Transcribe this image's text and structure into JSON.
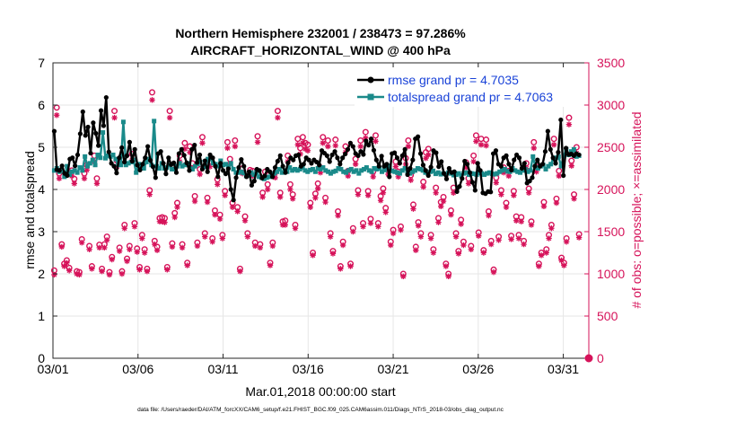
{
  "chart_data": {
    "type": "line",
    "title_line1": "Northern Hemisphere 232001 / 238473 = 97.286%",
    "title_line2": "AIRCRAFT_HORIZONTAL_WIND @ 400 hPa",
    "xlabel": "Mar.01,2018 00:00:00 start",
    "ylabel_left": "rmse and totalspread",
    "ylabel_right": "# of obs: o=possible; ×=assimilated",
    "footnote": "data file: /Users/raeder/DAI/ATM_forcXX/CAM6_setup/f.e21.FHIST_BGC.f09_025.CAM6assim.011/Diags_NTrS_2018-03/obs_diag_output.nc",
    "xlim": [
      0,
      31.5
    ],
    "ylim_left": [
      0,
      7
    ],
    "ylim_right": [
      0,
      3500
    ],
    "x_ticks": [
      {
        "value": 0,
        "label": "03/01"
      },
      {
        "value": 5,
        "label": "03/06"
      },
      {
        "value": 10,
        "label": "03/11"
      },
      {
        "value": 15,
        "label": "03/16"
      },
      {
        "value": 20,
        "label": "03/21"
      },
      {
        "value": 25,
        "label": "03/26"
      },
      {
        "value": 30,
        "label": "03/31"
      }
    ],
    "y_left_ticks": [
      "0",
      "1",
      "2",
      "3",
      "4",
      "5",
      "6",
      "7"
    ],
    "y_right_ticks": [
      "0",
      "500",
      "1000",
      "1500",
      "2000",
      "2500",
      "3000",
      "3500"
    ],
    "colors": {
      "rmse": "#000000",
      "spread": "#1a8a8a",
      "obs": "#d6135a",
      "legend_text": "#1a43d8",
      "right_axis": "#d6135a"
    },
    "series": [
      {
        "name": "rmse grand pr = 4.7035",
        "key": "rmse",
        "values": [
          5.38,
          4.47,
          4.45,
          4.56,
          4.38,
          4.33,
          4.72,
          4.75,
          4.56,
          4.82,
          5.32,
          5.84,
          5.28,
          5.48,
          4.86,
          5.58,
          5.33,
          5.04,
          5.87,
          5.51,
          6.18,
          4.89,
          4.62,
          4.55,
          4.39,
          4.75,
          4.99,
          4.65,
          4.8,
          5.12,
          4.67,
          4.95,
          4.58,
          4.46,
          4.6,
          4.75,
          5.02,
          4.69,
          4.54,
          4.28,
          4.85,
          4.9,
          4.62,
          4.37,
          4.75,
          4.59,
          4.63,
          4.4,
          4.85,
          4.95,
          4.81,
          4.63,
          4.45,
          4.95,
          5.05,
          4.64,
          4.82,
          4.48,
          4.68,
          4.42,
          4.82,
          4.75,
          4.55,
          4.3,
          4.62,
          4.45,
          4.37,
          4.49,
          4.0,
          3.75,
          4.28,
          4.52,
          4.71,
          4.55,
          4.3,
          4.42,
          4.1,
          4.2,
          4.48,
          4.45,
          4.27,
          4.32,
          4.48,
          4.42,
          4.3,
          4.52,
          4.67,
          4.8,
          4.55,
          4.4,
          4.63,
          4.75,
          4.7,
          4.8,
          4.82,
          4.55,
          4.6,
          4.75,
          4.7,
          4.62,
          4.7,
          4.65,
          4.58,
          4.92,
          4.86,
          4.8,
          4.66,
          4.82,
          4.9,
          4.75,
          4.6,
          4.75,
          4.84,
          4.95,
          5.1,
          5.02,
          4.85,
          4.8,
          4.9,
          4.83,
          5.15,
          5.05,
          5.2,
          4.93,
          4.7,
          4.55,
          4.79,
          4.55,
          4.6,
          4.3,
          4.85,
          4.87,
          4.75,
          4.62,
          4.8,
          4.95,
          4.35,
          4.5,
          4.7,
          5.2,
          5.25,
          4.85,
          4.58,
          4.45,
          4.33,
          4.53,
          4.92,
          4.87,
          4.54,
          4.66,
          4.38,
          4.25,
          4.5,
          4.4,
          4.42,
          3.95,
          4.07,
          4.26,
          4.67,
          4.6,
          4.4,
          4.17,
          3.98,
          4.62,
          4.45,
          3.92,
          3.9,
          3.95,
          3.94,
          4.85,
          4.92,
          4.6,
          4.55,
          4.75,
          4.8,
          4.6,
          4.46,
          4.7,
          4.82,
          4.75,
          4.5,
          4.62,
          4.15,
          4.2,
          4.28,
          4.55,
          4.7,
          4.55,
          4.6,
          4.9,
          5.38,
          4.95,
          4.75,
          4.62,
          4.88,
          5.65,
          4.33,
          4.98,
          4.83,
          4.84,
          4.8,
          4.85,
          4.82
        ]
      },
      {
        "name": "totalspread grand pr = 4.7063",
        "key": "spread",
        "values": [
          4.45,
          4.5,
          4.42,
          4.46,
          4.3,
          4.55,
          4.35,
          4.42,
          4.45,
          4.4,
          4.52,
          4.45,
          4.78,
          4.55,
          4.62,
          4.7,
          4.58,
          4.82,
          4.75,
          5.35,
          4.74,
          4.8,
          4.78,
          4.82,
          4.72,
          4.6,
          4.58,
          5.6,
          4.58,
          4.62,
          4.65,
          4.7,
          4.4,
          4.6,
          4.58,
          4.5,
          4.65,
          4.72,
          4.58,
          5.62,
          4.55,
          4.5,
          4.62,
          4.5,
          4.52,
          4.58,
          4.48,
          4.48,
          4.55,
          4.62,
          4.55,
          4.58,
          4.62,
          4.5,
          4.48,
          4.55,
          4.6,
          4.65,
          4.52,
          4.54,
          4.72,
          4.75,
          4.62,
          4.6,
          4.55,
          4.68,
          4.58,
          4.6,
          4.55,
          4.62,
          4.48,
          4.4,
          4.4,
          4.42,
          4.39,
          4.32,
          4.33,
          4.4,
          4.35,
          4.42,
          4.3,
          4.28,
          4.25,
          4.28,
          4.3,
          4.35,
          4.38,
          4.42,
          4.48,
          4.4,
          4.45,
          4.42,
          4.52,
          4.45,
          4.48,
          4.45,
          4.48,
          4.52,
          4.45,
          4.42,
          4.46,
          4.48,
          4.42,
          4.5,
          4.48,
          4.52,
          4.45,
          4.42,
          4.38,
          4.42,
          4.44,
          4.5,
          4.48,
          4.42,
          4.4,
          4.45,
          4.48,
          4.42,
          4.45,
          4.38,
          4.45,
          4.48,
          4.52,
          4.45,
          4.42,
          4.5,
          4.48,
          4.5,
          4.42,
          4.46,
          4.52,
          4.56,
          4.44,
          4.42,
          4.4,
          4.38,
          4.45,
          4.5,
          4.4,
          4.38,
          4.42,
          4.45,
          4.5,
          4.48,
          4.45,
          4.4,
          4.38,
          4.42,
          4.44,
          4.37,
          4.4,
          4.36,
          4.38,
          4.36,
          4.4,
          4.38,
          4.34,
          4.35,
          4.38,
          4.33,
          4.38,
          4.4,
          4.35,
          4.38,
          4.37,
          4.35,
          4.39,
          4.38,
          4.35,
          4.38,
          4.4,
          4.37,
          4.36,
          4.38,
          4.42,
          4.45,
          4.48,
          4.43,
          4.42,
          4.5,
          4.45,
          4.42,
          4.4,
          4.45,
          4.48,
          4.42,
          4.45,
          4.78,
          4.52,
          4.5,
          4.55,
          4.58,
          4.48,
          4.55,
          4.6,
          4.72,
          4.75,
          4.78,
          4.55,
          4.8,
          4.95,
          4.82,
          4.9,
          4.95,
          4.78,
          4.8
        ]
      },
      {
        "name": "possible",
        "key": "possible",
        "axis": "right",
        "values": [
          1040,
          2970,
          2190,
          1350,
          1120,
          1160,
          1070,
          2225,
          2125,
          1030,
          1020,
          1410,
          2190,
          2290,
          1330,
          1090,
          2400,
          2130,
          1345,
          1060,
          1350,
          1440,
          1020,
          1200,
          2930,
          2340,
          1310,
          1030,
          1580,
          1180,
          1330,
          2420,
          1600,
          1300,
          1080,
          1460,
          1290,
          1060,
          1990,
          3150,
          1390,
          1320,
          1660,
          1670,
          1660,
          1080,
          2930,
          1360,
          1720,
          1840,
          2400,
          1350,
          2550,
          1130,
          2510,
          2310,
          1920,
          1370,
          2240,
          2620,
          1480,
          1900,
          2330,
          1420,
          1750,
          2120,
          1700,
          1460,
          1980,
          2560,
          2360,
          1840,
          2580,
          1790,
          1060,
          2250,
          1680,
          1480,
          2230,
          2220,
          1370,
          2630,
          1350,
          1960,
          2210,
          2060,
          1130,
          1370,
          2200,
          2930,
          1960,
          1620,
          1630,
          2400,
          2060,
          1940,
          1580,
          2600,
          2490,
          2620,
          2550,
          2530,
          1840,
          1250,
          1950,
          2070,
          2260,
          2620,
          1900,
          2580,
          1480,
          1270,
          2590,
          1740,
          1090,
          1380,
          2510,
          2220,
          1120,
          1540,
          2360,
          1990,
          2580,
          1600,
          2680,
          1980,
          1650,
          2210,
          2640,
          1600,
          1920,
          2010,
          1780,
          2240,
          1380,
          1520,
          2330,
          2210,
          1560,
          1000,
          2370,
          2580,
          2170,
          1820,
          1320,
          1610,
          1480,
          2090,
          2440,
          2480,
          1460,
          1290,
          2020,
          1660,
          1850,
          1910,
          1120,
          1000,
          1750,
          2020,
          1480,
          1270,
          1640,
          1380,
          2320,
          2130,
          1330,
          2400,
          2640,
          1490,
          2600,
          1280,
          2590,
          1740,
          1390,
          1050,
          2140,
          1440,
          1990,
          2260,
          1840,
          2220,
          1450,
          1980,
          1680,
          1460,
          1670,
          1390,
          2310,
          2010,
          1620,
          2560,
          2270,
          1120,
          1250,
          1850,
          1290,
          1460,
          1580,
          2600,
          1890,
          2220,
          1190,
          1130,
          1420,
          2850,
          2340,
          1940,
          2500,
          1470
        ]
      },
      {
        "name": "assimilated",
        "key": "assimilated",
        "axis": "right",
        "values": [
          990,
          2880,
          2130,
          1320,
          1090,
          1130,
          1040,
          2160,
          2070,
          1000,
          990,
          1370,
          2130,
          2230,
          1290,
          1060,
          2330,
          2070,
          1310,
          1030,
          1310,
          1400,
          990,
          1170,
          2850,
          2270,
          1270,
          1000,
          1540,
          1150,
          1290,
          2350,
          1560,
          1260,
          1050,
          1420,
          1250,
          1030,
          1940,
          3060,
          1350,
          1280,
          1620,
          1620,
          1610,
          1050,
          2850,
          1320,
          1670,
          1790,
          2330,
          1310,
          2480,
          1100,
          2440,
          2250,
          1860,
          1330,
          2180,
          2550,
          1440,
          1850,
          2270,
          1380,
          1700,
          2060,
          1650,
          1420,
          1930,
          2490,
          2300,
          1790,
          2510,
          1740,
          1030,
          2190,
          1630,
          1440,
          2170,
          2160,
          1330,
          2560,
          1310,
          1910,
          2150,
          2000,
          1100,
          1330,
          2140,
          2850,
          1910,
          1580,
          1580,
          2330,
          2000,
          1890,
          1540,
          2530,
          2420,
          2550,
          2480,
          2460,
          1790,
          1220,
          1900,
          2010,
          2200,
          2550,
          1850,
          2510,
          1440,
          1240,
          2520,
          1690,
          1060,
          1340,
          2440,
          2160,
          1090,
          1500,
          2300,
          1940,
          2510,
          1560,
          2610,
          1930,
          1600,
          2150,
          2570,
          1560,
          1870,
          1960,
          1730,
          2180,
          1340,
          1480,
          2270,
          2150,
          1520,
          970,
          2300,
          2510,
          2110,
          1770,
          1280,
          1570,
          1440,
          2030,
          2370,
          2410,
          1420,
          1250,
          1960,
          1610,
          1800,
          1860,
          1090,
          970,
          1700,
          1960,
          1440,
          1240,
          1590,
          1340,
          2260,
          2070,
          1290,
          2330,
          2570,
          1450,
          2530,
          1250,
          2520,
          1690,
          1350,
          1020,
          2080,
          1400,
          1940,
          2200,
          1790,
          2160,
          1410,
          1930,
          1630,
          1420,
          1620,
          1350,
          2250,
          1960,
          1580,
          2490,
          2210,
          1090,
          1220,
          1800,
          1250,
          1420,
          1540,
          2530,
          1840,
          2160,
          1160,
          1100,
          1380,
          2770,
          2280,
          1890,
          2430,
          1430
        ]
      }
    ],
    "endpoint_obs": {
      "x": 31.5,
      "possible": 0,
      "assimilated": 0
    }
  }
}
